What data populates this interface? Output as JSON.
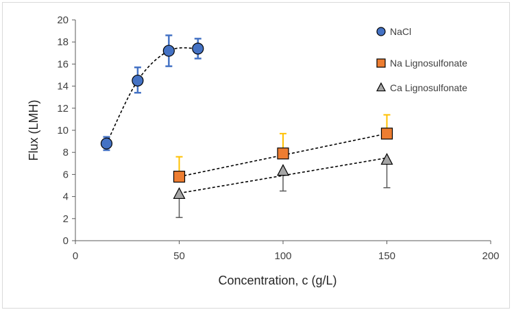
{
  "chart_data": {
    "type": "scatter",
    "xlabel": "Concentration, c (g/L)",
    "ylabel": "Flux (LMH)",
    "xlim": [
      0,
      200
    ],
    "ylim": [
      0,
      20
    ],
    "xticks": [
      0,
      50,
      100,
      150,
      200
    ],
    "yticks": [
      0,
      2,
      4,
      6,
      8,
      10,
      12,
      14,
      16,
      18,
      20
    ],
    "grid": false,
    "legend_position": "top-right",
    "series": [
      {
        "name": "NaCl",
        "marker": "circle",
        "fill": "#4472c4",
        "error_color": "#4472c4",
        "x": [
          15,
          30,
          45,
          59
        ],
        "y": [
          8.8,
          14.5,
          17.2,
          17.4
        ],
        "err_plus": [
          0.6,
          1.2,
          1.4,
          0.9
        ],
        "err_minus": [
          0.6,
          1.1,
          1.4,
          0.9
        ],
        "trendline": {
          "style": "dashed",
          "type": "smooth",
          "x": [
            15,
            30,
            45,
            59
          ],
          "y": [
            8.8,
            14.5,
            17.2,
            17.4
          ]
        }
      },
      {
        "name": "Na Lignosulfonate",
        "marker": "square",
        "fill": "#ed7d31",
        "error_color": "#ffc000",
        "x": [
          50,
          100,
          150
        ],
        "y": [
          5.8,
          7.9,
          9.7
        ],
        "err_plus": [
          1.8,
          1.8,
          1.7
        ],
        "err_minus": [
          0,
          0,
          0
        ],
        "trendline": {
          "style": "dashed",
          "type": "linear",
          "x": [
            50,
            150
          ],
          "y": [
            5.8,
            9.7
          ]
        }
      },
      {
        "name": "Ca Lignosulfonate",
        "marker": "triangle",
        "fill": "#a6a6a6",
        "error_color": "#595959",
        "x": [
          50,
          100,
          150
        ],
        "y": [
          4.2,
          6.3,
          7.3
        ],
        "err_plus": [
          0,
          0,
          0
        ],
        "err_minus": [
          2.1,
          1.8,
          2.5
        ],
        "trendline": {
          "style": "dashed",
          "type": "linear",
          "x": [
            50,
            150
          ],
          "y": [
            4.3,
            7.5
          ]
        }
      }
    ]
  }
}
